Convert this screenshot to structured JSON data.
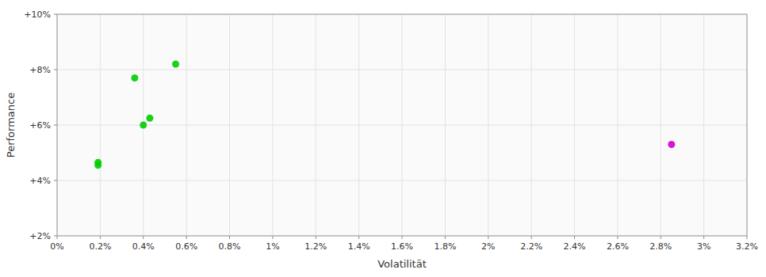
{
  "chart_data": {
    "type": "scatter",
    "xlabel": "Volatilität",
    "ylabel": "Performance",
    "xlim": [
      0.0,
      0.032
    ],
    "ylim": [
      0.02,
      0.1
    ],
    "xticks": [
      {
        "value": 0.0,
        "label": "0%"
      },
      {
        "value": 0.002,
        "label": "0.2%"
      },
      {
        "value": 0.004,
        "label": "0.4%"
      },
      {
        "value": 0.006,
        "label": "0.6%"
      },
      {
        "value": 0.008,
        "label": "0.8%"
      },
      {
        "value": 0.01,
        "label": "1%"
      },
      {
        "value": 0.012,
        "label": "1.2%"
      },
      {
        "value": 0.014,
        "label": "1.4%"
      },
      {
        "value": 0.016,
        "label": "1.6%"
      },
      {
        "value": 0.018,
        "label": "1.8%"
      },
      {
        "value": 0.02,
        "label": "2%"
      },
      {
        "value": 0.022,
        "label": "2.2%"
      },
      {
        "value": 0.024,
        "label": "2.4%"
      },
      {
        "value": 0.026,
        "label": "2.6%"
      },
      {
        "value": 0.028,
        "label": "2.8%"
      },
      {
        "value": 0.03,
        "label": "3%"
      },
      {
        "value": 0.032,
        "label": "3.2%"
      }
    ],
    "yticks": [
      {
        "value": 0.02,
        "label": "+2%"
      },
      {
        "value": 0.04,
        "label": "+4%"
      },
      {
        "value": 0.06,
        "label": "+6%"
      },
      {
        "value": 0.08,
        "label": "+8%"
      },
      {
        "value": 0.1,
        "label": "+10%"
      }
    ],
    "grid": true,
    "series": [
      {
        "color": "#00cc00",
        "x": [
          0.0019,
          0.0019,
          0.0036,
          0.004,
          0.0043,
          0.0055
        ],
        "values": [
          0.0455,
          0.0465,
          0.077,
          0.06,
          0.0625,
          0.082
        ]
      },
      {
        "color": "#cc00cc",
        "x": [
          0.0285
        ],
        "values": [
          0.053
        ]
      }
    ]
  }
}
